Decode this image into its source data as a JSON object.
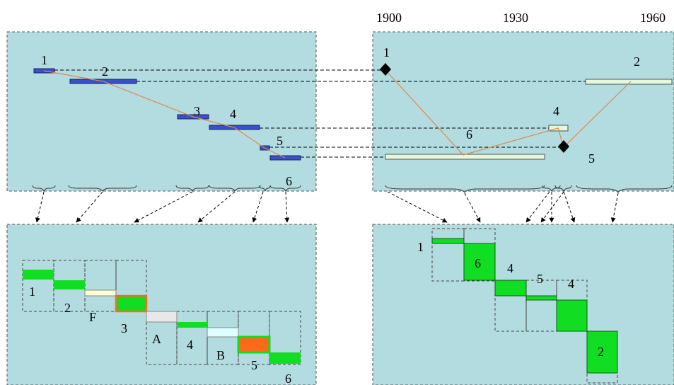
{
  "timeline": {
    "years": [
      "1900",
      "1930",
      "1960"
    ]
  },
  "top_left_panel": {
    "labels": [
      "1",
      "2",
      "3",
      "4",
      "5",
      "6"
    ]
  },
  "top_right_panel": {
    "labels": [
      "1",
      "2",
      "4",
      "6",
      "5"
    ]
  },
  "bottom_left_panel": {
    "labels": [
      "1",
      "2",
      "F",
      "3",
      "A",
      "4",
      "B",
      "5",
      "6"
    ]
  },
  "bottom_right_panel": {
    "labels": [
      "1",
      "6",
      "4",
      "5",
      "4",
      "2"
    ]
  },
  "colors": {
    "panel_fill": "#b3dce0",
    "dashed_border": "#555555",
    "blue_bar": "#3a4fc8",
    "pale_green_bar": "#e4f8dc",
    "bright_green": "#11dd22",
    "orange": "#ff6a1a",
    "connector_line": "#d98a50",
    "pale_yellow": "#ffffd8",
    "light_grey": "#e8e8e8",
    "light_cyan": "#ddffff"
  }
}
